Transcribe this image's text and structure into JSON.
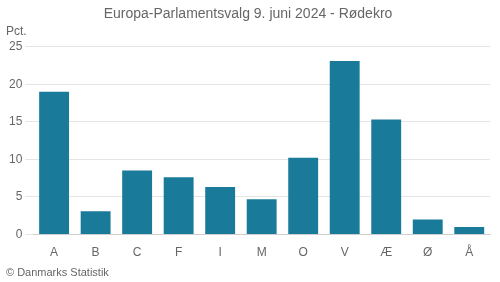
{
  "chart_data": {
    "type": "bar",
    "title": "Europa-Parlamentsvalg 9. juni 2024 - Rødekro",
    "ylabel": "Pct.",
    "annotations": [
      "© Danmarks Statistik"
    ],
    "categories": [
      "A",
      "B",
      "C",
      "F",
      "I",
      "M",
      "O",
      "V",
      "Æ",
      "Ø",
      "Å"
    ],
    "values": [
      19.0,
      3.1,
      8.5,
      7.6,
      6.3,
      4.7,
      10.2,
      23.1,
      15.3,
      2.0,
      1.0
    ],
    "color": "#1a7a9a",
    "ylim": [
      0,
      25
    ],
    "yticks": [
      0,
      5,
      10,
      15,
      20,
      25
    ],
    "grid": true
  }
}
